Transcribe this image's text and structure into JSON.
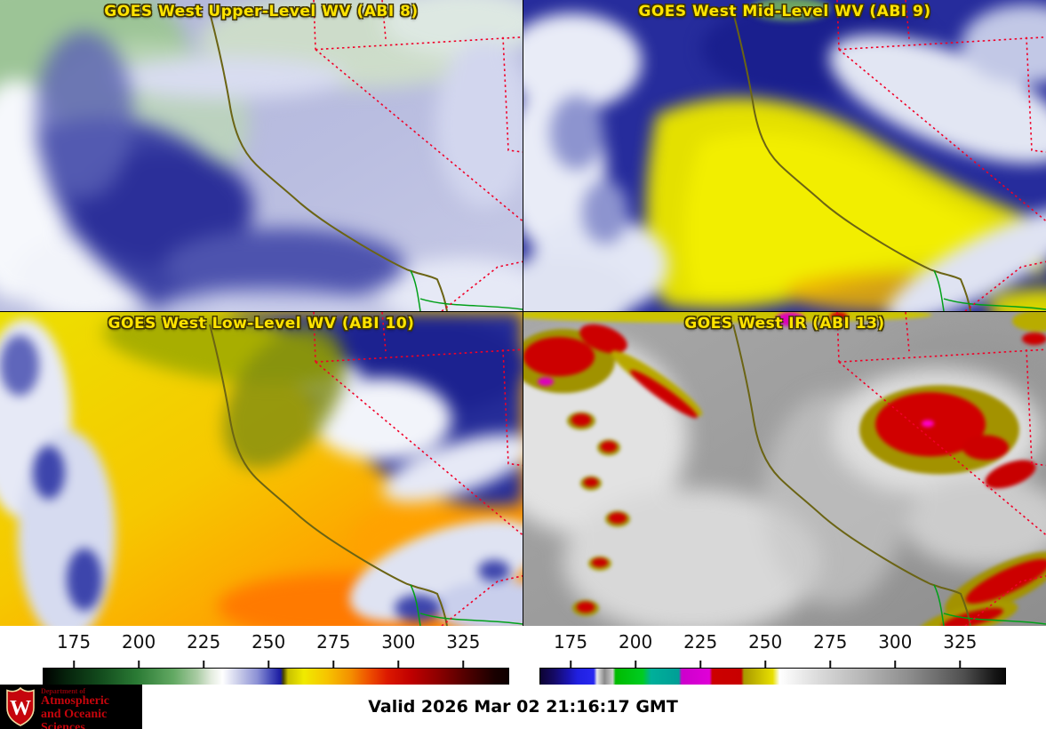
{
  "panels": [
    {
      "id": "abi8",
      "title": "GOES West Upper-Level WV (ABI 8)"
    },
    {
      "id": "abi9",
      "title": "GOES West Mid-Level WV (ABI 9)"
    },
    {
      "id": "abi10",
      "title": "GOES West Low-Level WV (ABI 10)"
    },
    {
      "id": "abi13",
      "title": "GOES West IR (ABI 13)"
    }
  ],
  "colorbars": [
    {
      "id": "wv",
      "type": "water-vapor-brightness-temperature",
      "ticks": [
        175,
        200,
        225,
        250,
        275,
        300,
        325
      ],
      "range": [
        163,
        342
      ]
    },
    {
      "id": "ir",
      "type": "infrared-brightness-temperature",
      "ticks": [
        175,
        200,
        225,
        250,
        275,
        300,
        325
      ],
      "range": [
        163,
        342
      ]
    }
  ],
  "footer": {
    "valid_time": "Valid 2026 Mar 02 21:16:17 GMT",
    "logo": {
      "line1": "Department of",
      "line2": "Atmospheric",
      "line3": "and Oceanic Sciences",
      "crest_letter": "W"
    }
  },
  "colors": {
    "title_yellow": "#ffe400",
    "border_red": "#f00028",
    "coast_olive": "#6b6414",
    "river_green": "#00a018",
    "logo_crimson": "#c5050c"
  }
}
